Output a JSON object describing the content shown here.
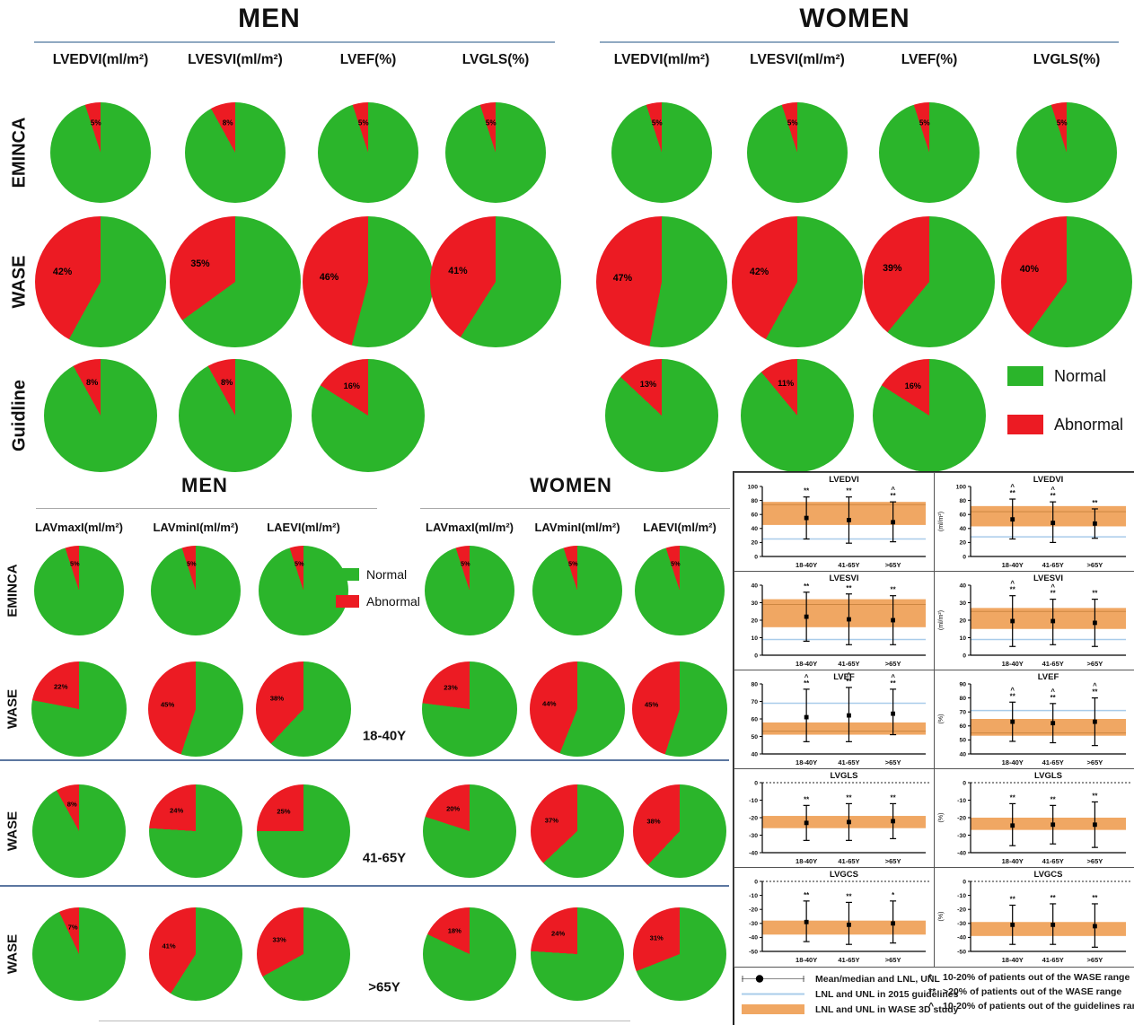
{
  "colors": {
    "green": "#2BB52B",
    "red": "#EC1B23",
    "orange_band": "#F0A763",
    "band_edge": "#CD8742",
    "blue_line": "#A9CCEA",
    "divider": "#3F5F8F",
    "underline_top": "#6B8CAE",
    "underline_bottom": "#AAAAAA"
  },
  "chart_data": {
    "pies": {
      "legend": {
        "normal": "Normal",
        "abnormal": "Abnormal"
      },
      "top": {
        "men": {
          "title": "MEN",
          "columns": [
            "LVEDVI(ml/m²)",
            "LVESVI(ml/m²)",
            "LVEF(%)",
            "LVGLS(%)"
          ],
          "rows": [
            {
              "label": "EMINCA",
              "abnormal_pct": [
                5,
                8,
                5,
                5
              ]
            },
            {
              "label": "WASE",
              "abnormal_pct": [
                42,
                35,
                46,
                41
              ]
            },
            {
              "label": "Guidline",
              "abnormal_pct": [
                8,
                8,
                16
              ]
            }
          ]
        },
        "women": {
          "title": "WOMEN",
          "columns": [
            "LVEDVI(ml/m²)",
            "LVESVI(ml/m²)",
            "LVEF(%)",
            "LVGLS(%)"
          ],
          "rows": [
            {
              "label": "EMINCA",
              "abnormal_pct": [
                5,
                5,
                5,
                5
              ]
            },
            {
              "label": "WASE",
              "abnormal_pct": [
                47,
                42,
                39,
                40
              ]
            },
            {
              "label": "Guidline",
              "abnormal_pct": [
                13,
                11,
                16
              ]
            }
          ]
        }
      },
      "bottom": {
        "age_labels": [
          "18-40Y",
          "41-65Y",
          ">65Y"
        ],
        "men": {
          "title": "MEN",
          "columns": [
            "LAVmaxI(ml/m²)",
            "LAVminI(ml/m²)",
            "LAEVI(ml/m²)"
          ],
          "rows": [
            {
              "label": "EMINCA",
              "age": "",
              "abnormal_pct": [
                5,
                5,
                5
              ]
            },
            {
              "label": "WASE",
              "age": "18-40Y",
              "abnormal_pct": [
                22,
                45,
                38
              ]
            },
            {
              "label": "WASE",
              "age": "41-65Y",
              "abnormal_pct": [
                8,
                24,
                25
              ]
            },
            {
              "label": "WASE",
              "age": ">65Y",
              "abnormal_pct": [
                7,
                41,
                33
              ]
            }
          ]
        },
        "women": {
          "title": "WOMEN",
          "columns": [
            "LAVmaxI(ml/m²)",
            "LAVminI(ml/m²)",
            "LAEVI(ml/m²)"
          ],
          "rows": [
            {
              "label": "EMINCA",
              "age": "",
              "abnormal_pct": [
                5,
                5,
                5
              ]
            },
            {
              "label": "WASE",
              "age": "18-40Y",
              "abnormal_pct": [
                23,
                44,
                45
              ]
            },
            {
              "label": "WASE",
              "age": "41-65Y",
              "abnormal_pct": [
                20,
                37,
                38
              ]
            },
            {
              "label": "WASE",
              "age": ">65Y",
              "abnormal_pct": [
                18,
                24,
                31
              ]
            }
          ]
        }
      }
    },
    "errorbar_panel": {
      "categories": [
        "18-40Y",
        "41-65Y",
        ">65Y"
      ],
      "charts": [
        {
          "type": "errorbar",
          "title": "LVEDVI",
          "sex": "men",
          "ylabel": "",
          "ylim": [
            0,
            100
          ],
          "yticks": [
            0,
            20,
            40,
            60,
            80,
            100
          ],
          "blue_line": 25,
          "zero_dashed": false,
          "band": [
            45,
            78
          ],
          "band_line": 74,
          "points": [
            {
              "mean": 55,
              "lo": 25,
              "hi": 85,
              "ann": [
                "**"
              ]
            },
            {
              "mean": 52,
              "lo": 19,
              "hi": 85,
              "ann": [
                "**"
              ]
            },
            {
              "mean": 49,
              "lo": 21,
              "hi": 78,
              "ann": [
                "^",
                "**"
              ]
            }
          ]
        },
        {
          "type": "errorbar",
          "title": "LVEDVI",
          "sex": "women",
          "ylabel": "(ml/m²)",
          "ylim": [
            0,
            100
          ],
          "yticks": [
            0,
            20,
            40,
            60,
            80,
            100
          ],
          "blue_line": 28,
          "zero_dashed": false,
          "band": [
            43,
            72
          ],
          "band_line": 64,
          "points": [
            {
              "mean": 53,
              "lo": 25,
              "hi": 82,
              "ann": [
                "^",
                "**"
              ]
            },
            {
              "mean": 48,
              "lo": 20,
              "hi": 78,
              "ann": [
                "^",
                "**"
              ]
            },
            {
              "mean": 47,
              "lo": 26,
              "hi": 68,
              "ann": [
                "**"
              ]
            }
          ]
        },
        {
          "type": "errorbar",
          "title": "LVESVI",
          "sex": "men",
          "ylabel": "",
          "ylim": [
            0,
            40
          ],
          "yticks": [
            0,
            10,
            20,
            30,
            40
          ],
          "blue_line": 9,
          "zero_dashed": false,
          "band": [
            16,
            32
          ],
          "band_line": 29,
          "points": [
            {
              "mean": 22,
              "lo": 8,
              "hi": 36,
              "ann": [
                "**"
              ]
            },
            {
              "mean": 20.5,
              "lo": 6,
              "hi": 35,
              "ann": [
                "**"
              ]
            },
            {
              "mean": 20,
              "lo": 6,
              "hi": 34,
              "ann": [
                "**"
              ]
            }
          ]
        },
        {
          "type": "errorbar",
          "title": "LVESVI",
          "sex": "women",
          "ylabel": "(ml/m²)",
          "ylim": [
            0,
            40
          ],
          "yticks": [
            0,
            10,
            20,
            30,
            40
          ],
          "blue_line": 9,
          "zero_dashed": false,
          "band": [
            15,
            27
          ],
          "band_line": 25,
          "points": [
            {
              "mean": 19.5,
              "lo": 5,
              "hi": 34,
              "ann": [
                "^",
                "**"
              ]
            },
            {
              "mean": 19.5,
              "lo": 6,
              "hi": 32,
              "ann": [
                "^",
                "**"
              ]
            },
            {
              "mean": 18.5,
              "lo": 5,
              "hi": 32,
              "ann": [
                "**"
              ]
            }
          ]
        },
        {
          "type": "errorbar",
          "title": "LVEF",
          "sex": "men",
          "ylabel": "",
          "ylim": [
            40,
            80
          ],
          "yticks": [
            40,
            50,
            60,
            70,
            80
          ],
          "blue_line": 69,
          "zero_dashed": false,
          "band": [
            51,
            58
          ],
          "band_line": 53,
          "points": [
            {
              "mean": 61,
              "lo": 47,
              "hi": 77,
              "ann": [
                "^",
                "**"
              ]
            },
            {
              "mean": 62,
              "lo": 47,
              "hi": 78,
              "ann": [
                "^",
                "**"
              ]
            },
            {
              "mean": 63,
              "lo": 51,
              "hi": 77,
              "ann": [
                "^",
                "**"
              ]
            }
          ]
        },
        {
          "type": "errorbar",
          "title": "LVEF",
          "sex": "women",
          "ylabel": "(%)",
          "ylim": [
            40,
            90
          ],
          "yticks": [
            40,
            50,
            60,
            70,
            80,
            90
          ],
          "blue_line": 71,
          "zero_dashed": false,
          "band": [
            53,
            65
          ],
          "band_line": 55,
          "points": [
            {
              "mean": 63,
              "lo": 49,
              "hi": 77,
              "ann": [
                "^",
                "**"
              ]
            },
            {
              "mean": 62,
              "lo": 48,
              "hi": 76,
              "ann": [
                "^",
                "**"
              ]
            },
            {
              "mean": 63,
              "lo": 46,
              "hi": 80,
              "ann": [
                "^",
                "**"
              ]
            }
          ]
        },
        {
          "type": "errorbar",
          "title": "LVGLS",
          "sex": "men",
          "ylabel": "",
          "ylim": [
            -40,
            0
          ],
          "yticks": [
            0,
            -10,
            -20,
            -30,
            -40
          ],
          "blue_line": null,
          "zero_dashed": true,
          "band": [
            -26,
            -19
          ],
          "band_line": null,
          "points": [
            {
              "mean": -23,
              "lo": -33,
              "hi": -13,
              "ann": [
                "**"
              ]
            },
            {
              "mean": -22.5,
              "lo": -33,
              "hi": -12,
              "ann": [
                "**"
              ]
            },
            {
              "mean": -22,
              "lo": -32,
              "hi": -12,
              "ann": [
                "**"
              ]
            }
          ]
        },
        {
          "type": "errorbar",
          "title": "LVGLS",
          "sex": "women",
          "ylabel": "(%)",
          "ylim": [
            -40,
            0
          ],
          "yticks": [
            0,
            -10,
            -20,
            -30,
            -40
          ],
          "blue_line": null,
          "zero_dashed": true,
          "band": [
            -27,
            -20
          ],
          "band_line": null,
          "points": [
            {
              "mean": -24.5,
              "lo": -36,
              "hi": -12,
              "ann": [
                "**"
              ]
            },
            {
              "mean": -24,
              "lo": -35,
              "hi": -13,
              "ann": [
                "**"
              ]
            },
            {
              "mean": -24,
              "lo": -37,
              "hi": -11,
              "ann": [
                "**"
              ]
            }
          ]
        },
        {
          "type": "errorbar",
          "title": "LVGCS",
          "sex": "men",
          "ylabel": "",
          "ylim": [
            -50,
            0
          ],
          "yticks": [
            0,
            -10,
            -20,
            -30,
            -40,
            -50
          ],
          "blue_line": null,
          "zero_dashed": true,
          "band": [
            -38,
            -28
          ],
          "band_line": null,
          "points": [
            {
              "mean": -29,
              "lo": -43,
              "hi": -14,
              "ann": [
                "**"
              ]
            },
            {
              "mean": -31,
              "lo": -45,
              "hi": -15,
              "ann": [
                "**"
              ]
            },
            {
              "mean": -30,
              "lo": -44,
              "hi": -14,
              "ann": [
                "*"
              ]
            }
          ]
        },
        {
          "type": "errorbar",
          "title": "LVGCS",
          "sex": "women",
          "ylabel": "(%)",
          "ylim": [
            -50,
            0
          ],
          "yticks": [
            0,
            -10,
            -20,
            -30,
            -40,
            -50
          ],
          "blue_line": null,
          "zero_dashed": true,
          "band": [
            -39,
            -29
          ],
          "band_line": null,
          "points": [
            {
              "mean": -31,
              "lo": -45,
              "hi": -17,
              "ann": [
                "**"
              ]
            },
            {
              "mean": -31,
              "lo": -45,
              "hi": -16,
              "ann": [
                "**"
              ]
            },
            {
              "mean": -32,
              "lo": -47,
              "hi": -16,
              "ann": [
                "**"
              ]
            }
          ]
        }
      ],
      "legend_symbols": [
        {
          "type": "dot-line",
          "label": "Mean/median and LNL, UNL"
        },
        {
          "type": "blue-line",
          "label": "LNL and UNL in 2015 guidelines"
        },
        {
          "type": "orange-band",
          "label": "LNL and UNL in WASE 3D study"
        }
      ],
      "legend_notes": [
        {
          "symbol": "*",
          "text": "10-20% of patients out of the  WASE range"
        },
        {
          "symbol": "**",
          "text": ">20% of patients out of the WASE range"
        },
        {
          "symbol": "^",
          "text": "10-20% of patients out of the guidelines range"
        }
      ]
    }
  }
}
